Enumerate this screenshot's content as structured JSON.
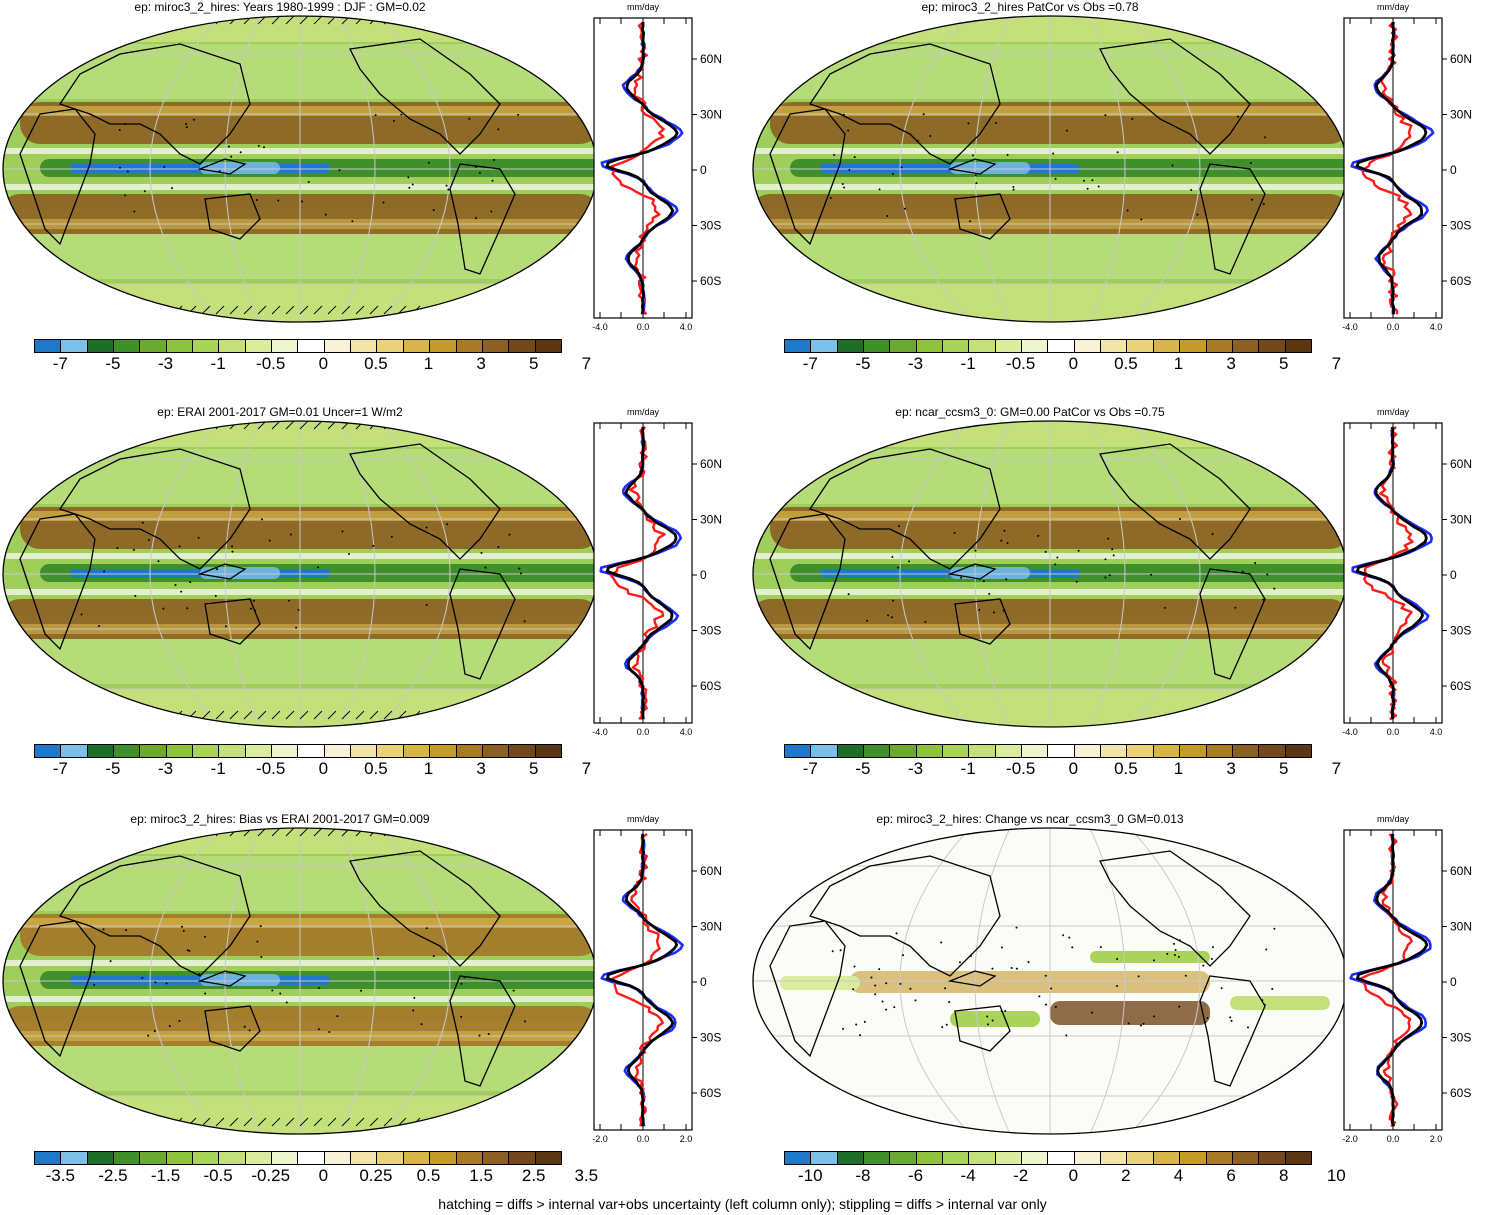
{
  "panels": [
    {
      "id": "p1",
      "title": "ep: miroc3_2_hires: Years 1980-1999 : DJF : GM=0.02",
      "colorbar_labels": [
        "-7",
        "-5",
        "-3",
        "-1",
        "-0.5",
        "0",
        "0.5",
        "1",
        "3",
        "5",
        "7"
      ],
      "zonal_xticks": [
        "-4.0",
        "0.0",
        "4.0"
      ],
      "zonal_ylabels": [
        "60N",
        "30N",
        "0",
        "30S",
        "60S"
      ],
      "zonal_unit": "mm/day",
      "hatching": true
    },
    {
      "id": "p2",
      "title": "ep: miroc3_2_hires PatCor vs Obs =0.78",
      "colorbar_labels": [
        "-7",
        "-5",
        "-3",
        "-1",
        "-0.5",
        "0",
        "0.5",
        "1",
        "3",
        "5",
        "7"
      ],
      "zonal_xticks": [
        "-4.0",
        "0.0",
        "4.0"
      ],
      "zonal_ylabels": [
        "60N",
        "30N",
        "0",
        "30S",
        "60S"
      ],
      "zonal_unit": "mm/day",
      "hatching": false
    },
    {
      "id": "p3",
      "title": "ep: ERAI 2001-2017 GM=0.01 Uncer=1 W/m2",
      "colorbar_labels": [
        "-7",
        "-5",
        "-3",
        "-1",
        "-0.5",
        "0",
        "0.5",
        "1",
        "3",
        "5",
        "7"
      ],
      "zonal_xticks": [
        "-4.0",
        "0.0",
        "4.0"
      ],
      "zonal_ylabels": [
        "60N",
        "30N",
        "0",
        "30S",
        "60S"
      ],
      "zonal_unit": "mm/day",
      "hatching": true
    },
    {
      "id": "p4",
      "title": "ep: ncar_ccsm3_0: GM=0.00 PatCor vs Obs =0.75",
      "colorbar_labels": [
        "-7",
        "-5",
        "-3",
        "-1",
        "-0.5",
        "0",
        "0.5",
        "1",
        "3",
        "5",
        "7"
      ],
      "zonal_xticks": [
        "-4.0",
        "0.0",
        "4.0"
      ],
      "zonal_ylabels": [
        "60N",
        "30N",
        "0",
        "30S",
        "60S"
      ],
      "zonal_unit": "mm/day",
      "hatching": false
    },
    {
      "id": "p5",
      "title": "ep: miroc3_2_hires: Bias vs ERAI 2001-2017 GM=0.009",
      "colorbar_labels": [
        "-3.5",
        "-2.5",
        "-1.5",
        "-0.5",
        "-0.25",
        "0",
        "0.25",
        "0.5",
        "1.5",
        "2.5",
        "3.5"
      ],
      "zonal_xticks": [
        "-2.0",
        "0.0",
        "2.0"
      ],
      "zonal_ylabels": [
        "60N",
        "30N",
        "0",
        "30S",
        "60S"
      ],
      "zonal_unit": "mm/day",
      "hatching": true
    },
    {
      "id": "p6",
      "title": "ep: miroc3_2_hires: Change vs ncar_ccsm3_0 GM=0.013",
      "colorbar_labels": [
        "-10",
        "-8",
        "-6",
        "-4",
        "-2",
        "0",
        "2",
        "4",
        "6",
        "8",
        "10"
      ],
      "zonal_xticks": [
        "-2.0",
        "0.0",
        "2.0"
      ],
      "zonal_ylabels": [
        "60N",
        "30N",
        "0",
        "30S",
        "60S"
      ],
      "zonal_unit": "mm/day",
      "hatching": false
    }
  ],
  "colorbar_colors": [
    "#1f78c8",
    "#7cc0ea",
    "#1e6e2a",
    "#3f8f2a",
    "#6aaa30",
    "#8fc23e",
    "#aad35a",
    "#c4e07a",
    "#dcec9e",
    "#eef6cf",
    "#ffffff",
    "#f7f1d8",
    "#f1e4a8",
    "#e8d27a",
    "#d8b54a",
    "#c49a2a",
    "#a97a26",
    "#8c5f22",
    "#73491c",
    "#5b3614"
  ],
  "footer": "hatching = diffs > internal var+obs uncertainty (left column only); stippling = diffs > internal var only",
  "colors": {
    "blue_line": "#1a2cff",
    "red_line": "#ff1a1a",
    "black_line": "#000000",
    "ocean_wet": "#7dc04a",
    "dry": "#7a4a1c"
  }
}
